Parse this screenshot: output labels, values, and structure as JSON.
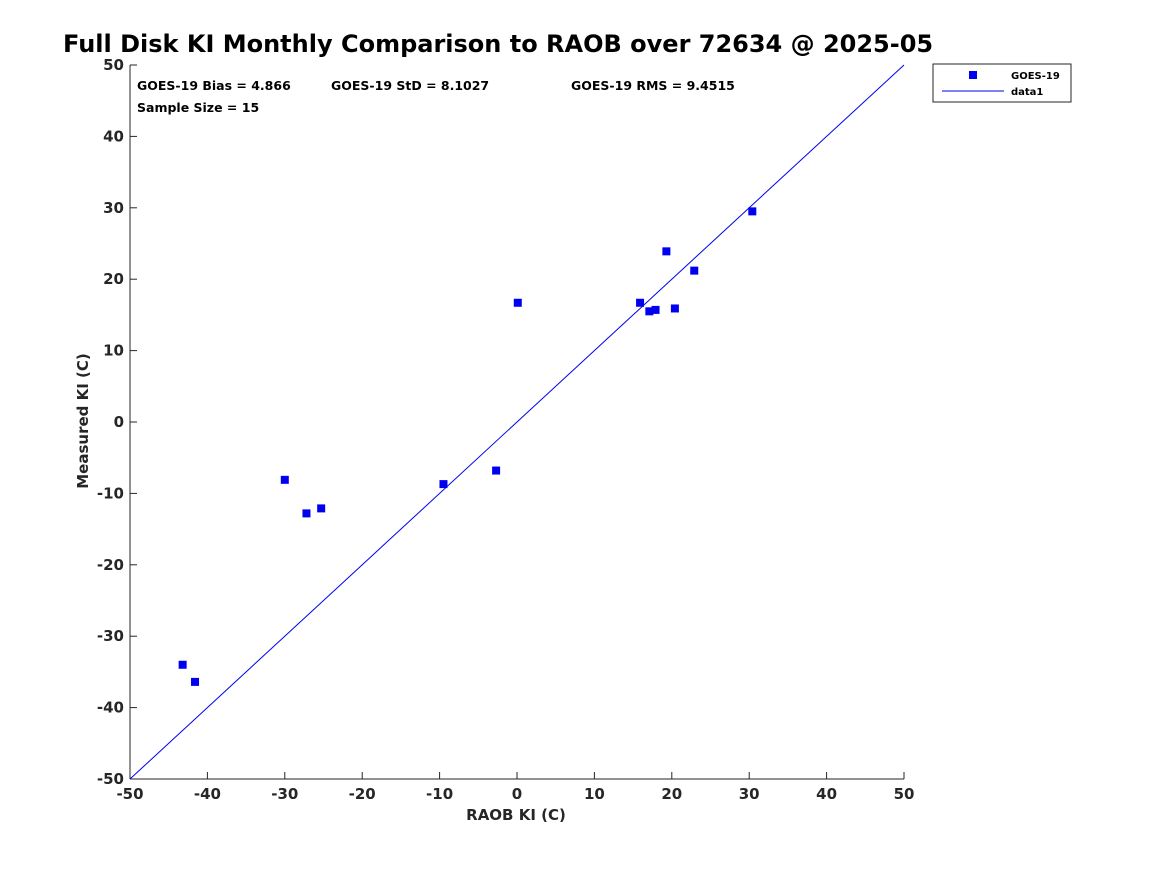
{
  "chart_data": {
    "type": "scatter",
    "title": "Full Disk KI Monthly Comparison to RAOB over 72634 @ 2025-05",
    "xlabel": "RAOB KI (C)",
    "ylabel": "Measured KI (C)",
    "xlim": [
      -50,
      50
    ],
    "ylim": [
      -50,
      50
    ],
    "xticks": [
      -50,
      -40,
      -30,
      -20,
      -10,
      0,
      10,
      20,
      30,
      40,
      50
    ],
    "yticks": [
      -50,
      -40,
      -30,
      -20,
      -10,
      0,
      10,
      20,
      30,
      40,
      50
    ],
    "grid": false,
    "legend_position": "top-right",
    "colors": {
      "marker": "#0000ee",
      "line": "#0000ee",
      "axis": "#262626"
    },
    "series": [
      {
        "name": "GOES-19",
        "kind": "marker",
        "points": [
          [
            -43.2,
            -34.0
          ],
          [
            -41.6,
            -36.4
          ],
          [
            -30.0,
            -8.1
          ],
          [
            -27.2,
            -12.8
          ],
          [
            -25.3,
            -12.1
          ],
          [
            -9.5,
            -8.7
          ],
          [
            -2.7,
            -6.8
          ],
          [
            0.1,
            16.7
          ],
          [
            15.9,
            16.7
          ],
          [
            17.1,
            15.5
          ],
          [
            17.9,
            15.7
          ],
          [
            19.3,
            23.9
          ],
          [
            20.4,
            15.9
          ],
          [
            22.9,
            21.2
          ],
          [
            30.4,
            29.5
          ]
        ]
      },
      {
        "name": "data1",
        "kind": "line",
        "points": [
          [
            -50,
            -50
          ],
          [
            50,
            50
          ]
        ]
      }
    ],
    "annotations": {
      "bias": "GOES-19 Bias = 4.866",
      "std": "GOES-19 StD = 8.1027",
      "rms": "GOES-19 RMS = 9.4515",
      "sample": "Sample Size = 15"
    }
  }
}
